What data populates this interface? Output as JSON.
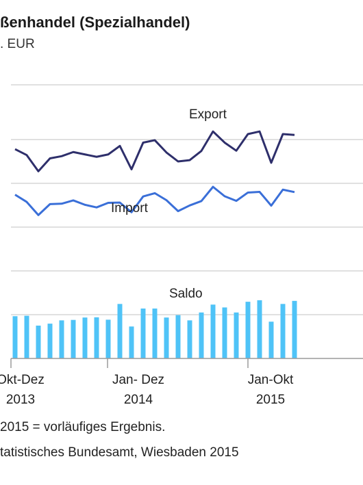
{
  "title": "ßenhandel (Spezialhandel)",
  "subtitle": ". EUR",
  "footnote": "2015 = vorläufiges Ergebnis.",
  "source": "tatistisches Bundesamt, Wiesbaden 2015",
  "chart_data": {
    "type": "line",
    "colors": {
      "export": "#2e2f6b",
      "import": "#3a6fd8",
      "saldo": "#4fc3f7",
      "grid": "#d6d6d6",
      "axis": "#9a9a9a"
    },
    "grid": true,
    "series": [
      {
        "name": "Export",
        "values": [
          95.6,
          92.9,
          85.5,
          91.4,
          92.4,
          94.3,
          93.2,
          92.1,
          93.2,
          97.1,
          86.4,
          98.6,
          99.7,
          94.1,
          90.0,
          90.6,
          94.8,
          103.7,
          98.6,
          94.9,
          102.5,
          103.7,
          89.4,
          102.5,
          102.1
        ]
      },
      {
        "name": "Import",
        "values": [
          74.8,
          71.5,
          65.5,
          70.5,
          70.7,
          72.2,
          70.2,
          69.0,
          71.1,
          71.2,
          66.8,
          74.0,
          75.5,
          72.3,
          67.3,
          69.9,
          71.9,
          78.4,
          74.1,
          72.0,
          75.8,
          76.1,
          69.8,
          77.1,
          76.0
        ]
      },
      {
        "name": "Saldo",
        "values": [
          19.3,
          19.5,
          15.0,
          15.9,
          17.4,
          17.6,
          18.7,
          18.8,
          17.7,
          24.9,
          14.6,
          22.8,
          22.8,
          18.7,
          19.8,
          17.4,
          21.0,
          24.6,
          23.3,
          21.0,
          25.9,
          26.6,
          16.8,
          24.9,
          26.3
        ]
      }
    ],
    "x_ticks": [
      {
        "index": 0,
        "label": "Okt-Dez",
        "year": "2013"
      },
      {
        "index": 9,
        "label": "Jan- Dez",
        "year": "2014"
      },
      {
        "index": 21,
        "label": "Jan-Okt",
        "year": "2015"
      }
    ],
    "ylim": [
      0,
      125
    ]
  }
}
